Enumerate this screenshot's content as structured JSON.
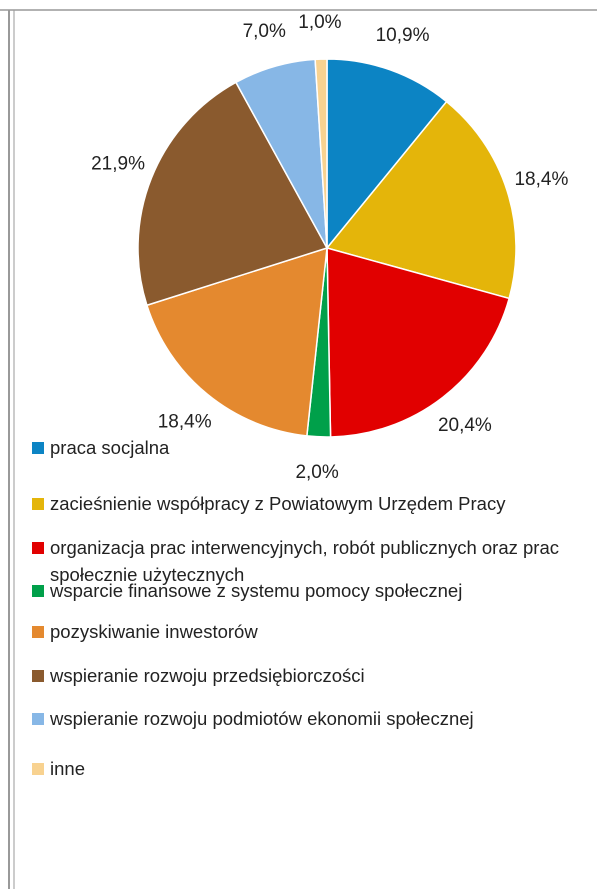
{
  "chart_data": {
    "type": "pie",
    "categories": [
      "praca socjalna",
      "zacieśnienie współpracy z Powiatowym Urzędem Pracy",
      "organizacja prac interwencyjnych, robót publicznych oraz prac społecznie użytecznych",
      "wsparcie finansowe z systemu pomocy społecznej",
      "pozyskiwanie inwestorów",
      "wspieranie rozwoju przedsiębiorczości",
      "wspieranie rozwoju podmiotów ekonomii społecznej",
      "inne"
    ],
    "values": [
      10.9,
      18.4,
      20.4,
      2.0,
      18.4,
      21.9,
      7.0,
      1.0
    ],
    "value_labels": [
      "10,9%",
      "18,4%",
      "20,4%",
      "2,0%",
      "18,4%",
      "21,9%",
      "7,0%",
      "1,0%"
    ],
    "colors": [
      "#0c84c4",
      "#e4b50a",
      "#e10000",
      "#00a04a",
      "#e4892f",
      "#8a5a2e",
      "#87b7e6",
      "#f8d290"
    ],
    "legend": "bottom"
  }
}
